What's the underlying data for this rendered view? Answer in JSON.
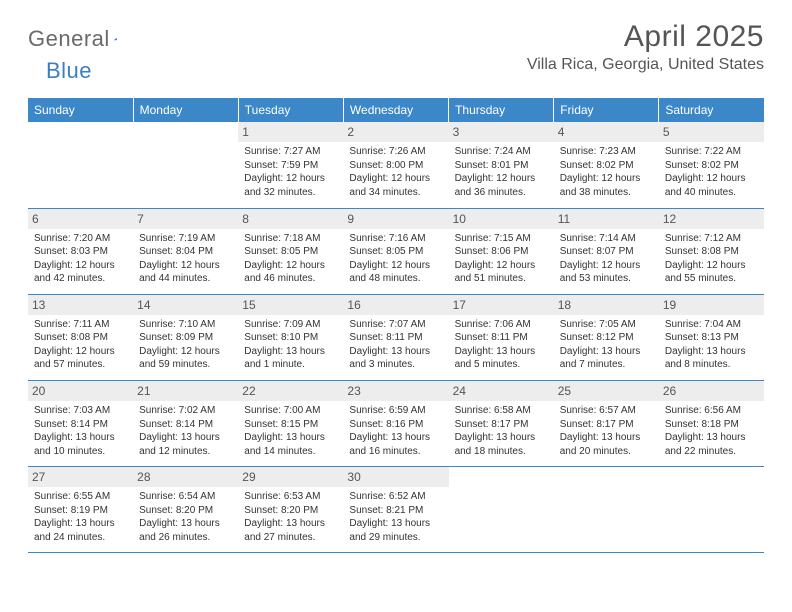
{
  "logo": {
    "part1": "General",
    "part2": "Blue"
  },
  "title": "April 2025",
  "location": "Villa Rica, Georgia, United States",
  "colors": {
    "header_bg": "#3b87c8",
    "header_fg": "#ffffff",
    "daynum_bg": "#ededed",
    "border": "#3b87c8",
    "logo_gray": "#6a6a6a",
    "logo_blue": "#3b7fbf"
  },
  "weekdays": [
    "Sunday",
    "Monday",
    "Tuesday",
    "Wednesday",
    "Thursday",
    "Friday",
    "Saturday"
  ],
  "weeks": [
    [
      null,
      null,
      {
        "d": "1",
        "sr": "7:27 AM",
        "ss": "7:59 PM",
        "dl": "12 hours and 32 minutes."
      },
      {
        "d": "2",
        "sr": "7:26 AM",
        "ss": "8:00 PM",
        "dl": "12 hours and 34 minutes."
      },
      {
        "d": "3",
        "sr": "7:24 AM",
        "ss": "8:01 PM",
        "dl": "12 hours and 36 minutes."
      },
      {
        "d": "4",
        "sr": "7:23 AM",
        "ss": "8:02 PM",
        "dl": "12 hours and 38 minutes."
      },
      {
        "d": "5",
        "sr": "7:22 AM",
        "ss": "8:02 PM",
        "dl": "12 hours and 40 minutes."
      }
    ],
    [
      {
        "d": "6",
        "sr": "7:20 AM",
        "ss": "8:03 PM",
        "dl": "12 hours and 42 minutes."
      },
      {
        "d": "7",
        "sr": "7:19 AM",
        "ss": "8:04 PM",
        "dl": "12 hours and 44 minutes."
      },
      {
        "d": "8",
        "sr": "7:18 AM",
        "ss": "8:05 PM",
        "dl": "12 hours and 46 minutes."
      },
      {
        "d": "9",
        "sr": "7:16 AM",
        "ss": "8:05 PM",
        "dl": "12 hours and 48 minutes."
      },
      {
        "d": "10",
        "sr": "7:15 AM",
        "ss": "8:06 PM",
        "dl": "12 hours and 51 minutes."
      },
      {
        "d": "11",
        "sr": "7:14 AM",
        "ss": "8:07 PM",
        "dl": "12 hours and 53 minutes."
      },
      {
        "d": "12",
        "sr": "7:12 AM",
        "ss": "8:08 PM",
        "dl": "12 hours and 55 minutes."
      }
    ],
    [
      {
        "d": "13",
        "sr": "7:11 AM",
        "ss": "8:08 PM",
        "dl": "12 hours and 57 minutes."
      },
      {
        "d": "14",
        "sr": "7:10 AM",
        "ss": "8:09 PM",
        "dl": "12 hours and 59 minutes."
      },
      {
        "d": "15",
        "sr": "7:09 AM",
        "ss": "8:10 PM",
        "dl": "13 hours and 1 minute."
      },
      {
        "d": "16",
        "sr": "7:07 AM",
        "ss": "8:11 PM",
        "dl": "13 hours and 3 minutes."
      },
      {
        "d": "17",
        "sr": "7:06 AM",
        "ss": "8:11 PM",
        "dl": "13 hours and 5 minutes."
      },
      {
        "d": "18",
        "sr": "7:05 AM",
        "ss": "8:12 PM",
        "dl": "13 hours and 7 minutes."
      },
      {
        "d": "19",
        "sr": "7:04 AM",
        "ss": "8:13 PM",
        "dl": "13 hours and 8 minutes."
      }
    ],
    [
      {
        "d": "20",
        "sr": "7:03 AM",
        "ss": "8:14 PM",
        "dl": "13 hours and 10 minutes."
      },
      {
        "d": "21",
        "sr": "7:02 AM",
        "ss": "8:14 PM",
        "dl": "13 hours and 12 minutes."
      },
      {
        "d": "22",
        "sr": "7:00 AM",
        "ss": "8:15 PM",
        "dl": "13 hours and 14 minutes."
      },
      {
        "d": "23",
        "sr": "6:59 AM",
        "ss": "8:16 PM",
        "dl": "13 hours and 16 minutes."
      },
      {
        "d": "24",
        "sr": "6:58 AM",
        "ss": "8:17 PM",
        "dl": "13 hours and 18 minutes."
      },
      {
        "d": "25",
        "sr": "6:57 AM",
        "ss": "8:17 PM",
        "dl": "13 hours and 20 minutes."
      },
      {
        "d": "26",
        "sr": "6:56 AM",
        "ss": "8:18 PM",
        "dl": "13 hours and 22 minutes."
      }
    ],
    [
      {
        "d": "27",
        "sr": "6:55 AM",
        "ss": "8:19 PM",
        "dl": "13 hours and 24 minutes."
      },
      {
        "d": "28",
        "sr": "6:54 AM",
        "ss": "8:20 PM",
        "dl": "13 hours and 26 minutes."
      },
      {
        "d": "29",
        "sr": "6:53 AM",
        "ss": "8:20 PM",
        "dl": "13 hours and 27 minutes."
      },
      {
        "d": "30",
        "sr": "6:52 AM",
        "ss": "8:21 PM",
        "dl": "13 hours and 29 minutes."
      },
      null,
      null,
      null
    ]
  ],
  "labels": {
    "sunrise": "Sunrise: ",
    "sunset": "Sunset: ",
    "daylight": "Daylight: "
  }
}
